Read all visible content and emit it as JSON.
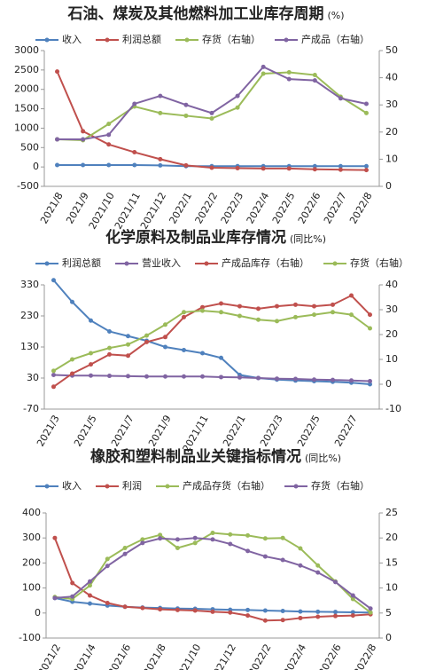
{
  "chart_data": [
    {
      "type": "line",
      "title": "石油、煤炭及其他燃料加工业库存周期",
      "subtitle": "(%)",
      "categories": [
        "2021/8",
        "2021/9",
        "2021/10",
        "2021/11",
        "2021/12",
        "2022/1",
        "2022/2",
        "2022/3",
        "2022/4",
        "2022/5",
        "2022/6",
        "2022/7",
        "2022/8"
      ],
      "ylim": [
        -500,
        3000
      ],
      "yticks": [
        -500,
        0,
        500,
        1000,
        1500,
        2000,
        2500,
        3000
      ],
      "y2lim": [
        0,
        50
      ],
      "y2ticks": [
        0,
        10,
        20,
        30,
        40,
        50
      ],
      "series": [
        {
          "name": "收入",
          "color": "#4f81bd",
          "values": [
            50,
            50,
            50,
            50,
            40,
            20,
            20,
            20,
            20,
            20,
            20,
            20,
            20
          ]
        },
        {
          "name": "利润总额",
          "color": "#c0504d",
          "values": [
            2460,
            920,
            580,
            380,
            200,
            40,
            -20,
            -30,
            -40,
            -40,
            -60,
            -70,
            -80
          ]
        },
        {
          "name": "存货（右轴）",
          "color": "#9bbb59",
          "axis": "y2",
          "values": [
            17.3,
            17,
            23,
            29.4,
            27,
            26,
            25,
            29,
            41.5,
            42,
            41,
            33,
            27
          ]
        },
        {
          "name": "产成品（右轴）",
          "color": "#8064a2",
          "axis": "y2",
          "values": [
            17.3,
            17.3,
            19,
            30.4,
            33.3,
            30,
            27,
            33.3,
            44,
            39.5,
            39,
            32.4,
            30.4
          ]
        }
      ]
    },
    {
      "type": "line",
      "title": "化学原料及制品业库存情况",
      "subtitle": "(同比%)",
      "categories": [
        "2021/3",
        null,
        "2021/5",
        null,
        "2021/7",
        null,
        "2021/9",
        null,
        "2021/11",
        null,
        "2022/1",
        null,
        "2022/3",
        null,
        "2022/5",
        null,
        "2022/7",
        null
      ],
      "ylim": [
        -70,
        330
      ],
      "yticks": [
        -70,
        30,
        130,
        230,
        330
      ],
      "y2lim": [
        -10,
        40
      ],
      "y2ticks": [
        -10,
        0,
        10,
        20,
        30,
        40
      ],
      "series": [
        {
          "name": "利润总额",
          "color": "#4f81bd",
          "values": [
            345,
            275,
            215,
            180,
            165,
            150,
            130,
            120,
            110,
            95,
            40,
            30,
            25,
            22,
            20,
            18,
            15,
            10
          ]
        },
        {
          "name": "营业收入",
          "color": "#8064a2",
          "values": [
            40,
            38,
            38,
            37,
            36,
            35,
            35,
            35,
            35,
            33,
            32,
            30,
            28,
            27,
            25,
            24,
            22,
            20
          ]
        },
        {
          "name": "产成品库存（右轴）",
          "color": "#c0504d",
          "axis": "y2",
          "values": [
            -1,
            4.3,
            8,
            12,
            11.5,
            17,
            19,
            27,
            31,
            32.5,
            31.4,
            30.4,
            31.4,
            32,
            31.4,
            32,
            35.7,
            28
          ]
        },
        {
          "name": "存货（右轴）",
          "color": "#9bbb59",
          "axis": "y2",
          "values": [
            5.4,
            10,
            12.5,
            14.6,
            16,
            19.6,
            24,
            29,
            29.6,
            29,
            27.5,
            26,
            25.4,
            27,
            28,
            29,
            28,
            22.5
          ]
        }
      ]
    },
    {
      "type": "line",
      "title": "橡胶和塑料制品业关键指标情况",
      "subtitle": "(同比%)",
      "categories": [
        "2021/2",
        null,
        "2021/4",
        null,
        "2021/6",
        null,
        "2021/8",
        null,
        "2021/10",
        null,
        "2021/12",
        null,
        "2022/2",
        null,
        "2022/4",
        null,
        "2022/6",
        null,
        "2022/8"
      ],
      "ylim": [
        -100,
        400
      ],
      "yticks": [
        -100,
        0,
        100,
        200,
        300,
        400
      ],
      "y2lim": [
        0,
        25
      ],
      "y2ticks": [
        0,
        5,
        10,
        15,
        20,
        25
      ],
      "series": [
        {
          "name": "收入",
          "color": "#4f81bd",
          "values": [
            60,
            45,
            38,
            30,
            25,
            22,
            20,
            18,
            17,
            15,
            13,
            12,
            10,
            8,
            6,
            5,
            4,
            3,
            2
          ]
        },
        {
          "name": "利润",
          "color": "#c0504d",
          "values": [
            300,
            120,
            70,
            40,
            25,
            20,
            15,
            12,
            10,
            5,
            2,
            -10,
            -30,
            -28,
            -20,
            -15,
            -12,
            -10,
            -5
          ]
        },
        {
          "name": "产成品存货（右轴）",
          "color": "#9bbb59",
          "axis": "y2",
          "values": [
            8.2,
            7.8,
            10.5,
            15.8,
            18,
            19.7,
            20.6,
            18,
            19,
            21,
            20.7,
            20.5,
            19.9,
            20,
            17.9,
            14.5,
            11.3,
            7.8,
            5.1
          ]
        },
        {
          "name": "存货（右轴）",
          "color": "#8064a2",
          "axis": "y2",
          "values": [
            8,
            8.3,
            11.3,
            14.4,
            16.8,
            19,
            19.9,
            19.7,
            20,
            19.7,
            18.8,
            17.4,
            16.3,
            15.6,
            14.5,
            13.1,
            11.2,
            8.5,
            5.9
          ]
        }
      ]
    }
  ]
}
